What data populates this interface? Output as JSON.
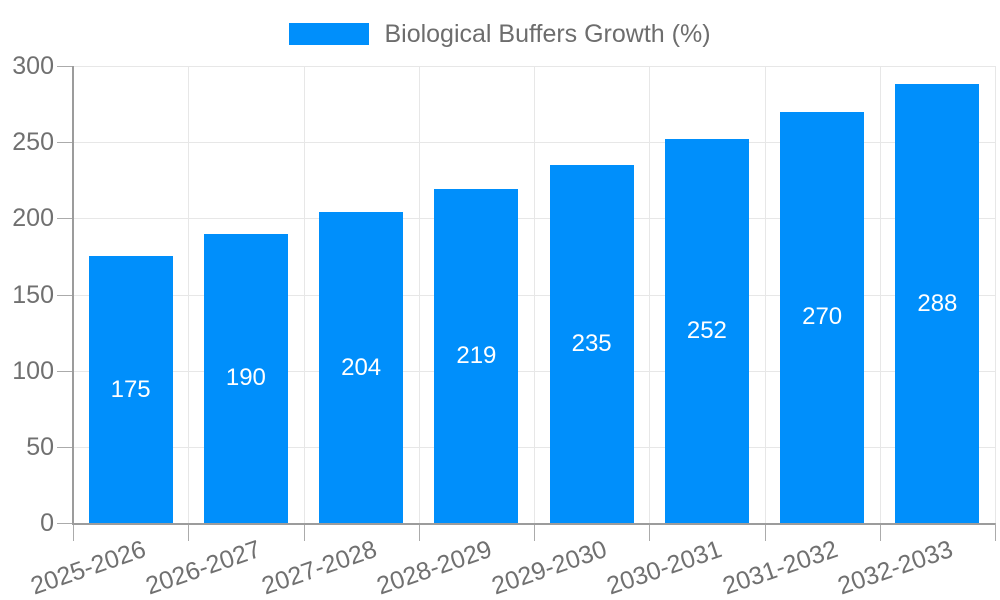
{
  "legend": {
    "label": "Biological Buffers Growth (%)"
  },
  "colors": {
    "bar": "#008FFB",
    "grid": "#e7e7e7",
    "axis_line": "#9c9c9c",
    "tick": "#ababab",
    "axis_label": "#707070",
    "legend_text": "#6d6d6d",
    "value_label": "#ffffff",
    "background": "#ffffff"
  },
  "chart_data": {
    "type": "bar",
    "title": "Biological Buffers Growth (%)",
    "series_name": "Biological Buffers Growth (%)",
    "categories": [
      "2025-2026",
      "2026-2027",
      "2027-2028",
      "2028-2029",
      "2029-2030",
      "2030-2031",
      "2031-2032",
      "2032-2033"
    ],
    "values": [
      175,
      190,
      204,
      219,
      235,
      252,
      270,
      288
    ],
    "xlabel": "",
    "ylabel": "",
    "ylim": [
      0,
      300
    ],
    "yticks": [
      0,
      50,
      100,
      150,
      200,
      250,
      300
    ],
    "grid": true,
    "legend_position": "top-center",
    "value_labels": "inside-center-white",
    "xlabel_rotation_deg": -19
  }
}
